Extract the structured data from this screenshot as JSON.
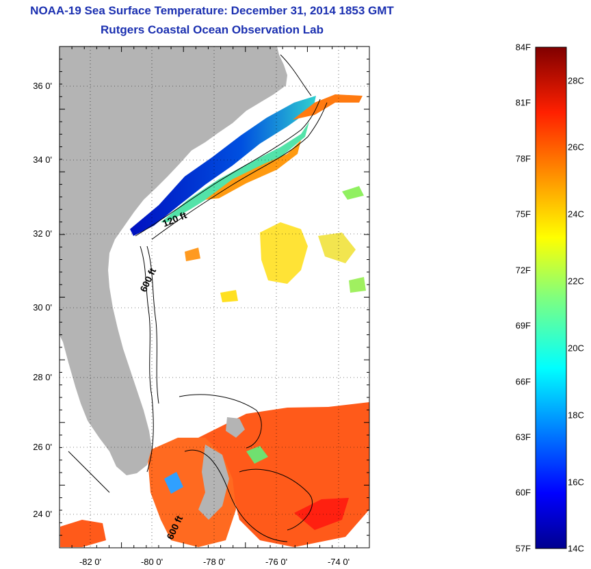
{
  "header": {
    "title": "NOAA-19 Sea Surface Temperature:  December 31, 2014 1853 GMT",
    "subtitle": "Rutgers Coastal Ocean Observation Lab"
  },
  "map": {
    "lat_range": [
      23,
      37
    ],
    "lon_range": [
      -83,
      -73
    ],
    "lat_ticks": [
      {
        "v": 36,
        "label": "36 0'"
      },
      {
        "v": 34,
        "label": "34 0'"
      },
      {
        "v": 32,
        "label": "32 0'"
      },
      {
        "v": 30,
        "label": "30 0'"
      },
      {
        "v": 28,
        "label": "28 0'"
      },
      {
        "v": 26,
        "label": "26 0'"
      },
      {
        "v": 24,
        "label": "24 0'"
      }
    ],
    "lon_ticks": [
      {
        "v": -82,
        "label": "-82 0'"
      },
      {
        "v": -80,
        "label": "-80 0'"
      },
      {
        "v": -78,
        "label": "-78 0'"
      },
      {
        "v": -76,
        "label": "-76 0'"
      },
      {
        "v": -74,
        "label": "-74 0'"
      }
    ],
    "contour_labels": [
      "120 ft",
      "600 ft",
      "600 ft"
    ],
    "land_color": "#b4b4b4",
    "water_no_data_color": "#ffffff"
  },
  "colorbar": {
    "fahrenheit_labels": [
      "84F",
      "81F",
      "78F",
      "75F",
      "72F",
      "69F",
      "66F",
      "63F",
      "60F",
      "57F"
    ],
    "celsius_labels": [
      "28C",
      "26C",
      "24C",
      "22C",
      "20C",
      "18C",
      "16C",
      "14C"
    ],
    "scale": "jet",
    "min_color": "#00008f",
    "max_color": "#800000"
  }
}
